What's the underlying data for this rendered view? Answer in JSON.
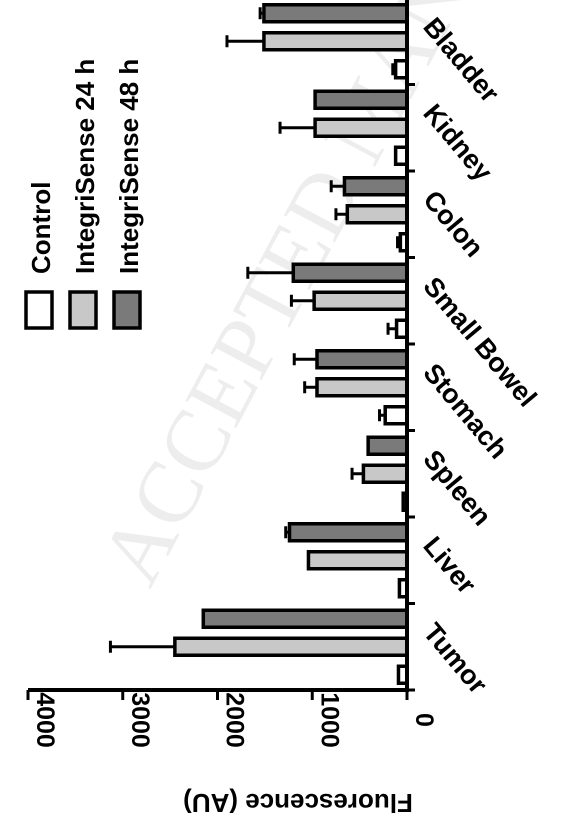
{
  "watermark": "ACCEPTED MANUSCRIPT",
  "chart_data": {
    "type": "bar",
    "orientation": "rotated",
    "ylabel": "Fluorescence (AU)",
    "ylim": [
      0,
      4000
    ],
    "yticks": [
      0,
      1000,
      2000,
      3000,
      4000
    ],
    "categories": [
      "Tumor",
      "Liver",
      "Spleen",
      "Stomach",
      "Small Bowel",
      "Colon",
      "Kidney",
      "Bladder"
    ],
    "series": [
      {
        "name": "Control",
        "color": "#ffffff",
        "values": [
          90,
          80,
          40,
          230,
          110,
          70,
          120,
          120
        ],
        "errors": [
          0,
          0,
          0,
          60,
          90,
          30,
          0,
          30
        ]
      },
      {
        "name": "IntegriSense 24 h",
        "color": "#c8c8c8",
        "values": [
          2450,
          1040,
          460,
          950,
          980,
          630,
          970,
          1510
        ],
        "errors": [
          680,
          0,
          120,
          130,
          240,
          120,
          370,
          390
        ]
      },
      {
        "name": "IntegriSense 48 h",
        "color": "#7a7a7a",
        "values": [
          2150,
          1240,
          410,
          950,
          1200,
          660,
          970,
          1510
        ],
        "errors": [
          0,
          40,
          0,
          240,
          480,
          140,
          0,
          40
        ]
      }
    ],
    "legend_position": "top-right",
    "grid": false
  }
}
